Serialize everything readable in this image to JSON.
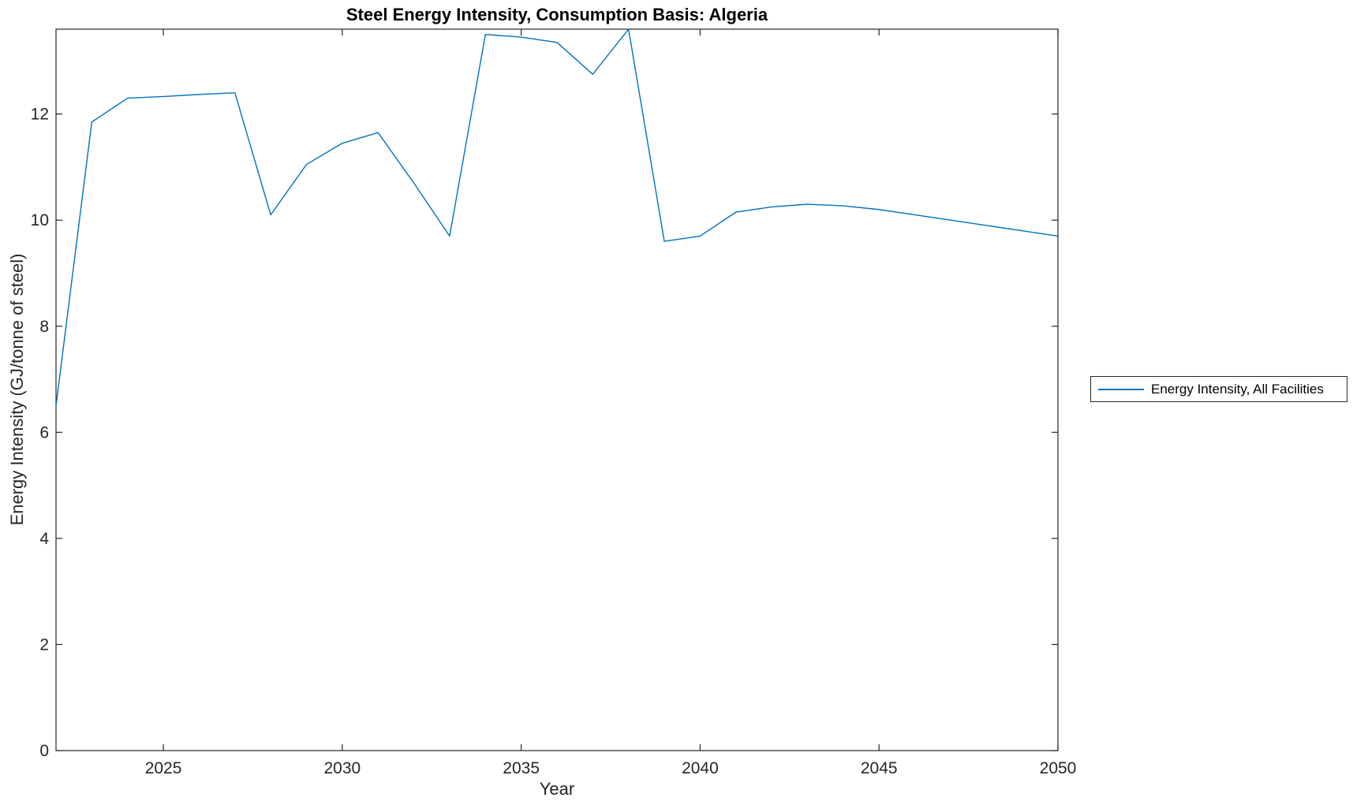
{
  "chart_data": {
    "type": "line",
    "title": "Steel Energy Intensity, Consumption Basis: Algeria",
    "xlabel": "Year",
    "ylabel": "Energy Intensity (GJ/tonne of steel)",
    "xlim": [
      2022,
      2050
    ],
    "ylim": [
      0,
      13.6
    ],
    "x_ticks": [
      2025,
      2030,
      2035,
      2040,
      2045,
      2050
    ],
    "y_ticks": [
      0,
      2,
      4,
      6,
      8,
      10,
      12
    ],
    "grid": false,
    "axis_color": "#262626",
    "background_color": "#ffffff",
    "legend_position": "right-outside",
    "series": [
      {
        "name": "Energy Intensity, All Facilities",
        "color": "#0072BD",
        "x": [
          2022,
          2023,
          2024,
          2025,
          2026,
          2027,
          2028,
          2029,
          2030,
          2031,
          2032,
          2033,
          2034,
          2035,
          2036,
          2037,
          2038,
          2039,
          2040,
          2041,
          2042,
          2043,
          2044,
          2045,
          2046,
          2047,
          2048,
          2049,
          2050
        ],
        "values": [
          6.5,
          11.85,
          12.3,
          12.33,
          12.37,
          12.4,
          10.1,
          11.05,
          11.45,
          11.65,
          10.7,
          9.7,
          13.5,
          13.45,
          13.35,
          12.75,
          13.6,
          9.6,
          9.7,
          10.15,
          10.25,
          10.3,
          10.27,
          10.2,
          10.1,
          10.0,
          9.9,
          9.8,
          9.7
        ]
      }
    ]
  }
}
